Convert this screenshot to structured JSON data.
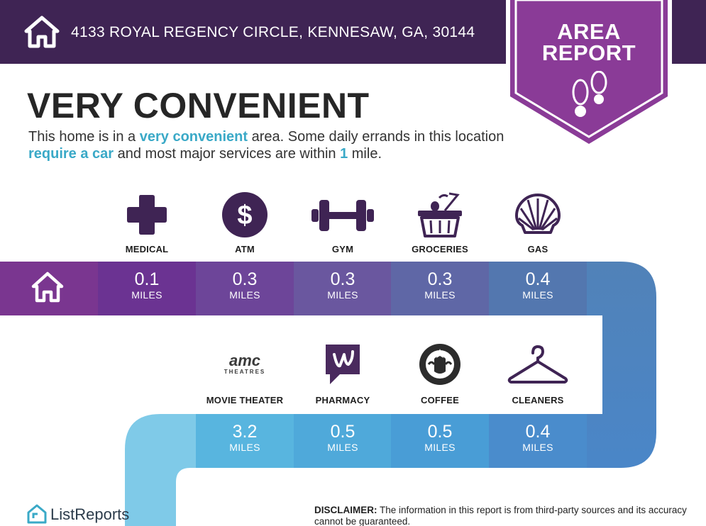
{
  "header": {
    "address": "4133 ROYAL REGENCY CIRCLE, KENNESAW, GA, 30144",
    "home_icon": "house-icon"
  },
  "badge": {
    "line1": "AREA",
    "line2": "REPORT",
    "icon": "footprints-icon"
  },
  "headline": "VERY CONVENIENT",
  "description": {
    "part1": "This home is in a ",
    "hl1": "very convenient",
    "part2": " area. Some daily errands in this location ",
    "hl2": "require a car",
    "part3": " and most major services are within ",
    "hl3": "1",
    "part4": " mile."
  },
  "row1": [
    {
      "label": "MEDICAL",
      "value": "0.1",
      "unit": "MILES",
      "icon": "medical-cross-icon",
      "color": "#6b3392"
    },
    {
      "label": "ATM",
      "value": "0.3",
      "unit": "MILES",
      "icon": "dollar-coin-icon",
      "color": "#6d4599"
    },
    {
      "label": "GYM",
      "value": "0.3",
      "unit": "MILES",
      "icon": "dumbbell-icon",
      "color": "#6a579f"
    },
    {
      "label": "GROCERIES",
      "value": "0.3",
      "unit": "MILES",
      "icon": "grocery-basket-icon",
      "color": "#5f67a6"
    },
    {
      "label": "GAS",
      "value": "0.4",
      "unit": "MILES",
      "icon": "shell-icon",
      "color": "#5377af"
    }
  ],
  "row2": [
    {
      "label": "MOVIE THEATER",
      "value": "3.2",
      "unit": "MILES",
      "icon": "amc-theatres-logo-icon",
      "logo_text": "amc",
      "logo_sub": "THEATRES",
      "color": "#58b5df"
    },
    {
      "label": "PHARMACY",
      "value": "0.5",
      "unit": "MILES",
      "icon": "walgreens-logo-icon",
      "color": "#4fa9da"
    },
    {
      "label": "COFFEE",
      "value": "0.5",
      "unit": "MILES",
      "icon": "starbucks-logo-icon",
      "color": "#499dd6"
    },
    {
      "label": "CLEANERS",
      "value": "0.4",
      "unit": "MILES",
      "icon": "hanger-icon",
      "color": "#4a8ccc"
    }
  ],
  "footer": {
    "brand": "ListReports",
    "disclaimer_label": "DISCLAIMER:",
    "disclaimer_text": " The information in this report is from third-party sources and its accuracy cannot be guaranteed."
  },
  "colors": {
    "header_bg": "#3f2454",
    "badge_purple": "#8a3b97",
    "highlight_teal": "#3aa9c7",
    "icon_purple": "#3f2454"
  }
}
